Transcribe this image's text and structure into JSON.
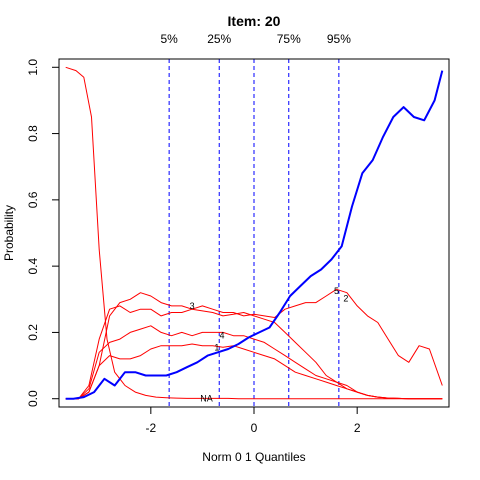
{
  "chart_data": {
    "type": "line",
    "title": "Item:  20",
    "xlabel": "Norm 0 1 Quantiles",
    "ylabel": "Probability",
    "xlim": [
      -3.78,
      3.78
    ],
    "ylim": [
      -0.025,
      1.025
    ],
    "xticks": [
      -2,
      0,
      2
    ],
    "yticks": [
      0.0,
      0.2,
      0.4,
      0.6,
      0.8,
      1.0
    ],
    "xtick_labels": [
      "-2",
      "0",
      "2"
    ],
    "ytick_labels": [
      "0.0",
      "0.2",
      "0.4",
      "0.6",
      "0.8",
      "1.0"
    ],
    "grid": false,
    "quantile_lines": [
      {
        "label": "5%",
        "x": -1.645
      },
      {
        "label": "25%",
        "x": -0.674
      },
      {
        "label": "",
        "x": 0.0
      },
      {
        "label": "75%",
        "x": 0.674
      },
      {
        "label": "95%",
        "x": 1.645
      }
    ],
    "series": [
      {
        "name": "",
        "color": "#0000ff",
        "emphasis": true,
        "x": [
          -3.65,
          -3.5,
          -3.3,
          -3.1,
          -2.9,
          -2.7,
          -2.5,
          -2.3,
          -2.1,
          -1.9,
          -1.7,
          -1.5,
          -1.3,
          -1.1,
          -0.9,
          -0.7,
          -0.5,
          -0.3,
          -0.1,
          0.1,
          0.3,
          0.5,
          0.7,
          0.9,
          1.1,
          1.3,
          1.5,
          1.7,
          1.9,
          2.1,
          2.3,
          2.5,
          2.7,
          2.9,
          3.1,
          3.3,
          3.5,
          3.65
        ],
        "y": [
          0.0,
          0.0,
          0.005,
          0.02,
          0.06,
          0.04,
          0.08,
          0.08,
          0.07,
          0.07,
          0.07,
          0.08,
          0.095,
          0.11,
          0.13,
          0.14,
          0.15,
          0.165,
          0.185,
          0.2,
          0.215,
          0.26,
          0.31,
          0.34,
          0.37,
          0.39,
          0.42,
          0.46,
          0.58,
          0.68,
          0.72,
          0.79,
          0.85,
          0.88,
          0.85,
          0.84,
          0.9,
          0.99
        ]
      },
      {
        "name": "",
        "color": "#ff0000",
        "x": [
          -3.65,
          -3.45,
          -3.3,
          -3.15,
          -3.0,
          -2.85,
          -2.7,
          -2.5,
          -2.3,
          -2.1,
          -1.9,
          -1.7,
          -1.5,
          -1.3,
          -1.1,
          -0.9,
          -0.7,
          -0.5,
          -0.3,
          -0.1,
          0.1,
          0.3,
          0.5,
          0.7,
          0.9,
          1.1,
          1.3,
          1.5,
          1.7,
          1.9,
          2.1,
          2.3,
          2.5,
          2.7,
          2.9,
          3.1,
          3.3,
          3.5,
          3.65
        ],
        "y": [
          1.0,
          0.99,
          0.97,
          0.85,
          0.45,
          0.18,
          0.08,
          0.04,
          0.02,
          0.01,
          0.005,
          0.003,
          0.002,
          0.001,
          0.001,
          0.001,
          0.001,
          0.001,
          0.0,
          0.0,
          0.0,
          0.0,
          0.0,
          0.0,
          0.0,
          0.0,
          0.0,
          0.0,
          0.0,
          0.0,
          0.0,
          0.0,
          0.0,
          0.0,
          0.0,
          0.0,
          0.0,
          0.0,
          0.0
        ]
      },
      {
        "name": "",
        "color": "#ff0000",
        "x": [
          -3.65,
          -3.4,
          -3.2,
          -3.0,
          -2.8,
          -2.6,
          -2.4,
          -2.2,
          -2.0,
          -1.8,
          -1.6,
          -1.4,
          -1.2,
          -1.0,
          -0.8,
          -0.6,
          -0.4,
          -0.2,
          0.0,
          0.2,
          0.4,
          0.6,
          0.8,
          1.0,
          1.2,
          1.4,
          1.6,
          1.8,
          2.0,
          2.2,
          2.4,
          2.6,
          2.8,
          3.0,
          3.2,
          3.4,
          3.65
        ],
        "y": [
          0.0,
          0.0,
          0.02,
          0.1,
          0.25,
          0.29,
          0.3,
          0.32,
          0.31,
          0.29,
          0.28,
          0.28,
          0.27,
          0.28,
          0.27,
          0.26,
          0.26,
          0.25,
          0.255,
          0.25,
          0.245,
          0.27,
          0.28,
          0.29,
          0.29,
          0.31,
          0.33,
          0.32,
          0.28,
          0.25,
          0.23,
          0.18,
          0.13,
          0.11,
          0.16,
          0.15,
          0.04
        ]
      },
      {
        "name": "",
        "color": "#ff0000",
        "x": [
          -3.65,
          -3.4,
          -3.2,
          -3.0,
          -2.8,
          -2.6,
          -2.4,
          -2.2,
          -2.0,
          -1.8,
          -1.6,
          -1.4,
          -1.2,
          -1.0,
          -0.8,
          -0.6,
          -0.4,
          -0.2,
          0.0,
          0.2,
          0.4,
          0.6,
          0.8,
          1.0,
          1.2,
          1.4,
          1.6,
          1.8,
          2.0,
          2.2,
          2.4,
          2.6,
          2.8,
          3.0,
          3.2,
          3.4,
          3.65
        ],
        "y": [
          0.0,
          0.0,
          0.04,
          0.18,
          0.27,
          0.28,
          0.26,
          0.27,
          0.27,
          0.25,
          0.26,
          0.26,
          0.27,
          0.265,
          0.26,
          0.25,
          0.255,
          0.26,
          0.25,
          0.24,
          0.23,
          0.2,
          0.17,
          0.14,
          0.11,
          0.07,
          0.05,
          0.03,
          0.02,
          0.01,
          0.005,
          0.002,
          0.001,
          0.0,
          0.0,
          0.0,
          0.0
        ]
      },
      {
        "name": "",
        "color": "#ff0000",
        "x": [
          -3.65,
          -3.4,
          -3.2,
          -3.0,
          -2.8,
          -2.6,
          -2.4,
          -2.2,
          -2.0,
          -1.8,
          -1.6,
          -1.4,
          -1.2,
          -1.0,
          -0.8,
          -0.6,
          -0.4,
          -0.2,
          0.0,
          0.2,
          0.4,
          0.6,
          0.8,
          1.0,
          1.2,
          1.4,
          1.6,
          1.8,
          2.0,
          2.2,
          2.4,
          2.6,
          2.8,
          3.0,
          3.2,
          3.4,
          3.65
        ],
        "y": [
          0.0,
          0.0,
          0.03,
          0.14,
          0.17,
          0.18,
          0.2,
          0.21,
          0.22,
          0.2,
          0.19,
          0.2,
          0.19,
          0.2,
          0.2,
          0.2,
          0.19,
          0.19,
          0.18,
          0.17,
          0.15,
          0.13,
          0.11,
          0.09,
          0.07,
          0.06,
          0.05,
          0.04,
          0.02,
          0.01,
          0.005,
          0.002,
          0.001,
          0.0,
          0.0,
          0.0,
          0.0
        ]
      },
      {
        "name": "",
        "color": "#ff0000",
        "x": [
          -3.65,
          -3.4,
          -3.2,
          -3.0,
          -2.8,
          -2.6,
          -2.4,
          -2.2,
          -2.0,
          -1.8,
          -1.6,
          -1.4,
          -1.2,
          -1.0,
          -0.8,
          -0.6,
          -0.4,
          -0.2,
          0.0,
          0.2,
          0.4,
          0.6,
          0.8,
          1.0,
          1.2,
          1.4,
          1.6,
          1.8,
          2.0,
          2.2,
          2.4,
          2.6,
          2.8,
          3.0,
          3.2,
          3.4,
          3.65
        ],
        "y": [
          0.0,
          0.0,
          0.02,
          0.1,
          0.13,
          0.12,
          0.12,
          0.13,
          0.15,
          0.16,
          0.16,
          0.16,
          0.165,
          0.16,
          0.16,
          0.155,
          0.16,
          0.15,
          0.14,
          0.13,
          0.12,
          0.1,
          0.08,
          0.07,
          0.06,
          0.05,
          0.04,
          0.03,
          0.02,
          0.01,
          0.005,
          0.002,
          0.001,
          0.0,
          0.0,
          0.0,
          0.0
        ]
      }
    ],
    "curve_labels": [
      {
        "text": "3",
        "x": -1.2,
        "y": 0.28
      },
      {
        "text": "4",
        "x": -0.62,
        "y": 0.19
      },
      {
        "text": "1",
        "x": -0.72,
        "y": 0.155
      },
      {
        "text": "5",
        "x": 1.6,
        "y": 0.325
      },
      {
        "text": "2",
        "x": 1.78,
        "y": 0.303
      },
      {
        "text": "NA",
        "x": -0.92,
        "y": 0.0
      }
    ]
  }
}
